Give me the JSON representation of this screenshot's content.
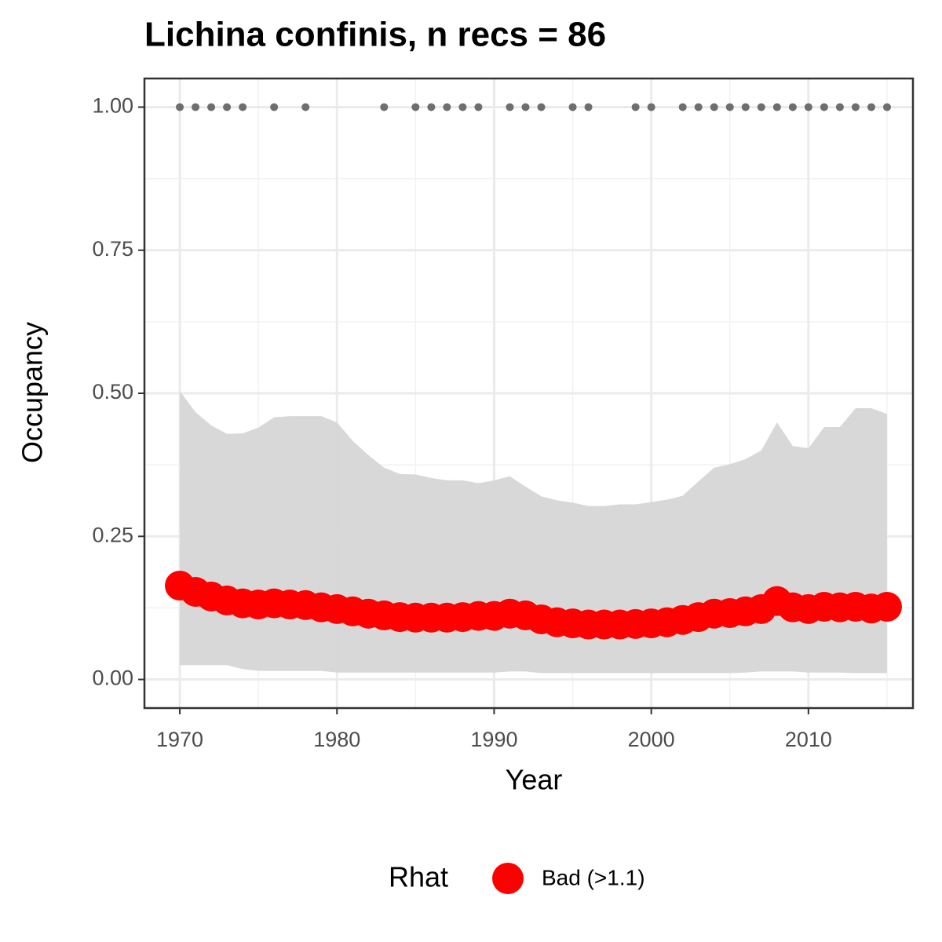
{
  "chart_data": {
    "type": "line",
    "title": "Lichina confinis, n recs = 86",
    "x_label": "Year",
    "y_label": "Occupancy",
    "legend_title": "Rhat",
    "x": [
      1970,
      1971,
      1972,
      1973,
      1974,
      1975,
      1976,
      1977,
      1978,
      1979,
      1980,
      1981,
      1982,
      1983,
      1984,
      1985,
      1986,
      1987,
      1988,
      1989,
      1990,
      1991,
      1992,
      1993,
      1994,
      1995,
      1996,
      1997,
      1998,
      1999,
      2000,
      2001,
      2002,
      2003,
      2004,
      2005,
      2006,
      2007,
      2008,
      2009,
      2010,
      2011,
      2012,
      2013,
      2014,
      2015
    ],
    "series": [
      {
        "name": "Bad (>1.1)",
        "color": "#ff0000",
        "values": [
          0.164,
          0.153,
          0.145,
          0.138,
          0.133,
          0.131,
          0.133,
          0.131,
          0.13,
          0.126,
          0.123,
          0.119,
          0.115,
          0.112,
          0.109,
          0.108,
          0.108,
          0.108,
          0.109,
          0.111,
          0.111,
          0.115,
          0.112,
          0.105,
          0.1,
          0.098,
          0.096,
          0.096,
          0.096,
          0.097,
          0.098,
          0.1,
          0.104,
          0.109,
          0.115,
          0.116,
          0.119,
          0.123,
          0.137,
          0.126,
          0.123,
          0.127,
          0.126,
          0.127,
          0.124,
          0.127
        ]
      }
    ],
    "band": {
      "color": "#d6d6d6",
      "upper": [
        0.504,
        0.467,
        0.444,
        0.429,
        0.43,
        0.44,
        0.458,
        0.46,
        0.46,
        0.46,
        0.449,
        0.417,
        0.392,
        0.37,
        0.359,
        0.358,
        0.352,
        0.348,
        0.348,
        0.343,
        0.348,
        0.355,
        0.337,
        0.32,
        0.313,
        0.309,
        0.303,
        0.303,
        0.306,
        0.306,
        0.31,
        0.314,
        0.321,
        0.346,
        0.37,
        0.376,
        0.385,
        0.4,
        0.449,
        0.408,
        0.404,
        0.441,
        0.441,
        0.474,
        0.474,
        0.464
      ],
      "lower": [
        0.025,
        0.025,
        0.025,
        0.025,
        0.018,
        0.015,
        0.015,
        0.015,
        0.015,
        0.015,
        0.012,
        0.012,
        0.012,
        0.012,
        0.012,
        0.012,
        0.012,
        0.012,
        0.012,
        0.012,
        0.012,
        0.014,
        0.014,
        0.011,
        0.011,
        0.011,
        0.011,
        0.011,
        0.011,
        0.011,
        0.011,
        0.011,
        0.011,
        0.011,
        0.011,
        0.011,
        0.012,
        0.014,
        0.014,
        0.014,
        0.012,
        0.012,
        0.012,
        0.011,
        0.011,
        0.011
      ]
    },
    "records": {
      "color": "#6e6e6e",
      "x": [
        1970,
        1971,
        1972,
        1973,
        1974,
        1976,
        1978,
        1983,
        1985,
        1986,
        1987,
        1988,
        1989,
        1991,
        1992,
        1993,
        1995,
        1996,
        1999,
        2000,
        2002,
        2003,
        2004,
        2005,
        2006,
        2007,
        2008,
        2009,
        2010,
        2011,
        2012,
        2013,
        2014,
        2015
      ],
      "values": [
        1,
        1,
        1,
        1,
        1,
        1,
        1,
        1,
        1,
        1,
        1,
        1,
        1,
        1,
        1,
        1,
        1,
        1,
        1,
        1,
        1,
        1,
        1,
        1,
        1,
        1,
        1,
        1,
        1,
        1,
        1,
        1,
        1,
        1
      ]
    },
    "xlim": [
      1967.75,
      2016.65
    ],
    "ylim": [
      -0.05,
      1.05
    ],
    "xticks": [
      1970,
      1980,
      1990,
      2000,
      2010
    ],
    "yticks": [
      {
        "value": 0,
        "label": "0.00"
      },
      {
        "value": 0.25,
        "label": "0.25"
      },
      {
        "value": 0.5,
        "label": "0.50"
      },
      {
        "value": 0.75,
        "label": "0.75"
      },
      {
        "value": 1,
        "label": "1.00"
      }
    ],
    "grid": true
  }
}
